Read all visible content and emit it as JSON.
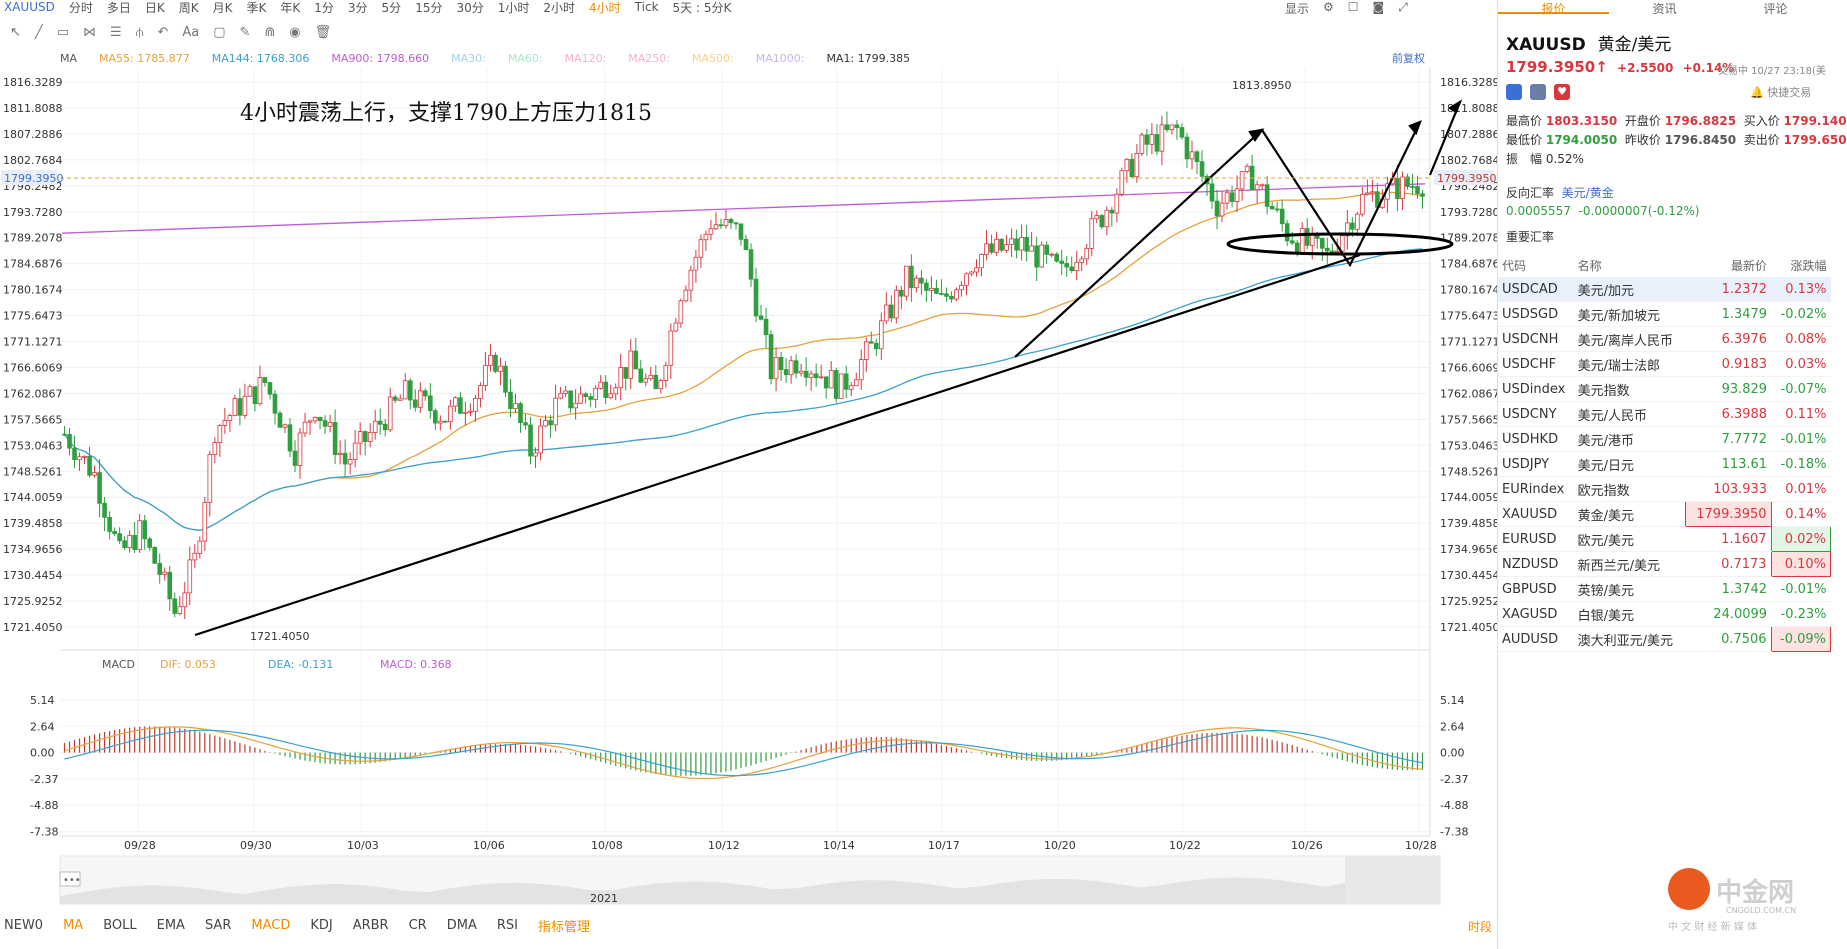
{
  "topbar": {
    "symbol": "XAUUSD",
    "periods": [
      "分时",
      "多日",
      "日K",
      "周K",
      "月K",
      "季K",
      "年K",
      "1分",
      "3分",
      "5分",
      "15分",
      "30分",
      "1小时",
      "2小时",
      "4小时",
      "Tick"
    ],
    "active_period": "4小时",
    "range": "5天 : 5分K",
    "right": [
      "显示"
    ]
  },
  "indicators": {
    "ma": "MA",
    "ma55": "MA55: 1785.877",
    "ma144": "MA144: 1768.306",
    "ma900": "MA900: 1798.660",
    "ma30": "MA30:",
    "ma60": "MA60:",
    "ma120": "MA120:",
    "ma250": "MA250:",
    "ma500": "MA500:",
    "ma1000": "MA1000:",
    "ma1": "MA1: 1799.385",
    "fuquan": "前复权"
  },
  "annotation": "4小时震荡上行，支撑1790上方压力1815",
  "price_axis": [
    "1816.3289",
    "1811.8088",
    "1807.2886",
    "1802.7684",
    "1798.2482",
    "1793.7280",
    "1789.2078",
    "1784.6876",
    "1780.1674",
    "1775.6473",
    "1771.1271",
    "1766.6069",
    "1762.0867",
    "1757.5665",
    "1753.0463",
    "1748.5261",
    "1744.0059",
    "1739.4858",
    "1734.9656",
    "1730.4454",
    "1725.9252",
    "1721.4050"
  ],
  "current_price": "1799.3950",
  "high_label": "1813.8950",
  "low_label": "1721.4050",
  "macd": {
    "name": "MACD",
    "dif": "DIF: 0.053",
    "dea": "DEA: -0.131",
    "macd": "MACD: 0.368",
    "axis": [
      "5.14",
      "2.64",
      "0.00",
      "-2.37",
      "-4.88",
      "-7.38"
    ]
  },
  "dates": [
    "09/28",
    "09/30",
    "10/03",
    "10/06",
    "10/08",
    "10/12",
    "10/14",
    "10/17",
    "10/20",
    "10/22",
    "10/26",
    "10/28"
  ],
  "year": "2021",
  "bottom_tabs": [
    "NEW0",
    "MA",
    "BOLL",
    "EMA",
    "SAR",
    "MACD",
    "KDJ",
    "ARBR",
    "CR",
    "DMA",
    "RSI",
    "指标管理"
  ],
  "bottom_right": "时段",
  "right": {
    "tabs": [
      "报价",
      "资讯",
      "评论"
    ],
    "symbol": "XAUUSD",
    "name": "黄金/美元",
    "price": "1799.3950",
    "arrow": "↑",
    "change": "+2.5500",
    "pct": "+0.14%",
    "time": "交易中 10/27 23:18(美",
    "quick": "快捷交易",
    "stats": [
      [
        "最高价",
        "1803.3150",
        "开盘价",
        "1796.8825",
        "买入价",
        "1799.140"
      ],
      [
        "最低价",
        "1794.0050",
        "昨收价",
        "1796.8450",
        "卖出价",
        "1799.650"
      ]
    ],
    "amplitude": "振　幅 0.52%",
    "reverse_label": "反向汇率",
    "reverse_pair": "美元/黄金",
    "reverse_value": "0.0005557",
    "reverse_change": "-0.0000007(-0.12%)",
    "section": "重要汇率",
    "table_headers": [
      "代码",
      "名称",
      "最新价",
      "涨跌幅"
    ],
    "rows": [
      {
        "code": "USDCAD",
        "name": "美元/加元",
        "price": "1.2372",
        "pct": "0.13%",
        "up": true
      },
      {
        "code": "USDSGD",
        "name": "美元/新加坡元",
        "price": "1.3479",
        "pct": "-0.02%",
        "up": false
      },
      {
        "code": "USDCNH",
        "name": "美元/离岸人民币",
        "price": "6.3976",
        "pct": "0.08%",
        "up": true
      },
      {
        "code": "USDCHF",
        "name": "美元/瑞士法郎",
        "price": "0.9183",
        "pct": "0.03%",
        "up": true
      },
      {
        "code": "USDindex",
        "name": "美元指数",
        "price": "93.829",
        "pct": "-0.07%",
        "up": false
      },
      {
        "code": "USDCNY",
        "name": "美元/人民币",
        "price": "6.3988",
        "pct": "0.11%",
        "up": true
      },
      {
        "code": "USDHKD",
        "name": "美元/港币",
        "price": "7.7772",
        "pct": "-0.01%",
        "up": false
      },
      {
        "code": "USDJPY",
        "name": "美元/日元",
        "price": "113.61",
        "pct": "-0.18%",
        "up": false
      },
      {
        "code": "EURindex",
        "name": "欧元指数",
        "price": "103.933",
        "pct": "0.01%",
        "up": true
      },
      {
        "code": "XAUUSD",
        "name": "黄金/美元",
        "price": "1799.3950",
        "pct": "0.14%",
        "up": true
      },
      {
        "code": "EURUSD",
        "name": "欧元/美元",
        "price": "1.1607",
        "pct": "0.02%",
        "up": true
      },
      {
        "code": "NZDUSD",
        "name": "新西兰元/美元",
        "price": "0.7173",
        "pct": "0.10%",
        "up": true
      },
      {
        "code": "GBPUSD",
        "name": "英镑/美元",
        "price": "1.3742",
        "pct": "-0.01%",
        "up": false
      },
      {
        "code": "XAGUSD",
        "name": "白银/美元",
        "price": "24.0099",
        "pct": "-0.23%",
        "up": false
      },
      {
        "code": "AUDUSD",
        "name": "澳大利亚元/美元",
        "price": "0.7506",
        "pct": "-0.09%",
        "up": false
      }
    ],
    "logo": "中金网",
    "logo_sub": "CNGOLD.COM.CN",
    "logo_slogan": "中 文 财 经 新 媒 体"
  }
}
